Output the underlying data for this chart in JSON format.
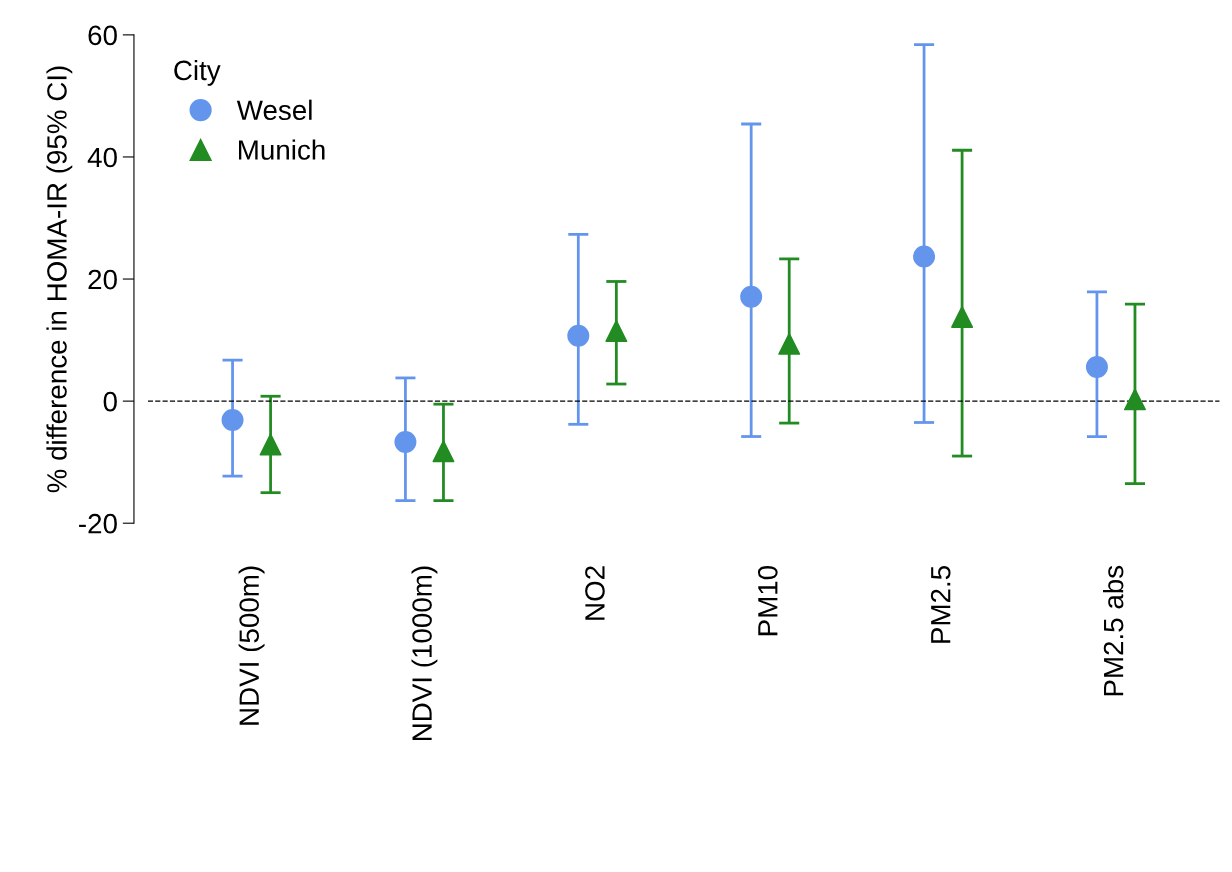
{
  "chart_data": {
    "type": "scatter",
    "ylabel": "% difference in HOMA-IR (95% CI)",
    "legend_title": "City",
    "legend": "top left",
    "grid": false,
    "categories": [
      "NDVI (500m)",
      "NDVI (1000m)",
      "NO2",
      "PM10",
      "PM2.5",
      "PM2.5 abs"
    ],
    "ylim": [
      -20,
      60
    ],
    "yticks": [
      -20,
      0,
      20,
      40,
      60
    ],
    "ref_lines": [
      {
        "axis": "y",
        "value": 0,
        "color": "#000000",
        "line_style": "dashed"
      }
    ],
    "series": [
      {
        "name": "Wesel",
        "color": "#6495ed",
        "marker": "circle",
        "values": [
          -3.1,
          -6.7,
          10.7,
          17.1,
          23.7,
          5.6
        ],
        "errors": [
          [
            -12.3,
            6.7
          ],
          [
            -16.3,
            3.8
          ],
          [
            -3.8,
            27.3
          ],
          [
            -5.8,
            45.4
          ],
          [
            -3.5,
            58.4
          ],
          [
            -5.8,
            17.9
          ]
        ]
      },
      {
        "name": "Munich",
        "color": "#228b22",
        "marker": "triangle",
        "values": [
          -7.1,
          -8.2,
          11.5,
          9.4,
          13.8,
          0.3
        ],
        "errors": [
          [
            -15.0,
            0.8
          ],
          [
            -16.3,
            -0.5
          ],
          [
            2.8,
            19.6
          ],
          [
            -3.6,
            23.3
          ],
          [
            -9.0,
            41.1
          ],
          [
            -13.5,
            15.9
          ]
        ]
      }
    ]
  }
}
